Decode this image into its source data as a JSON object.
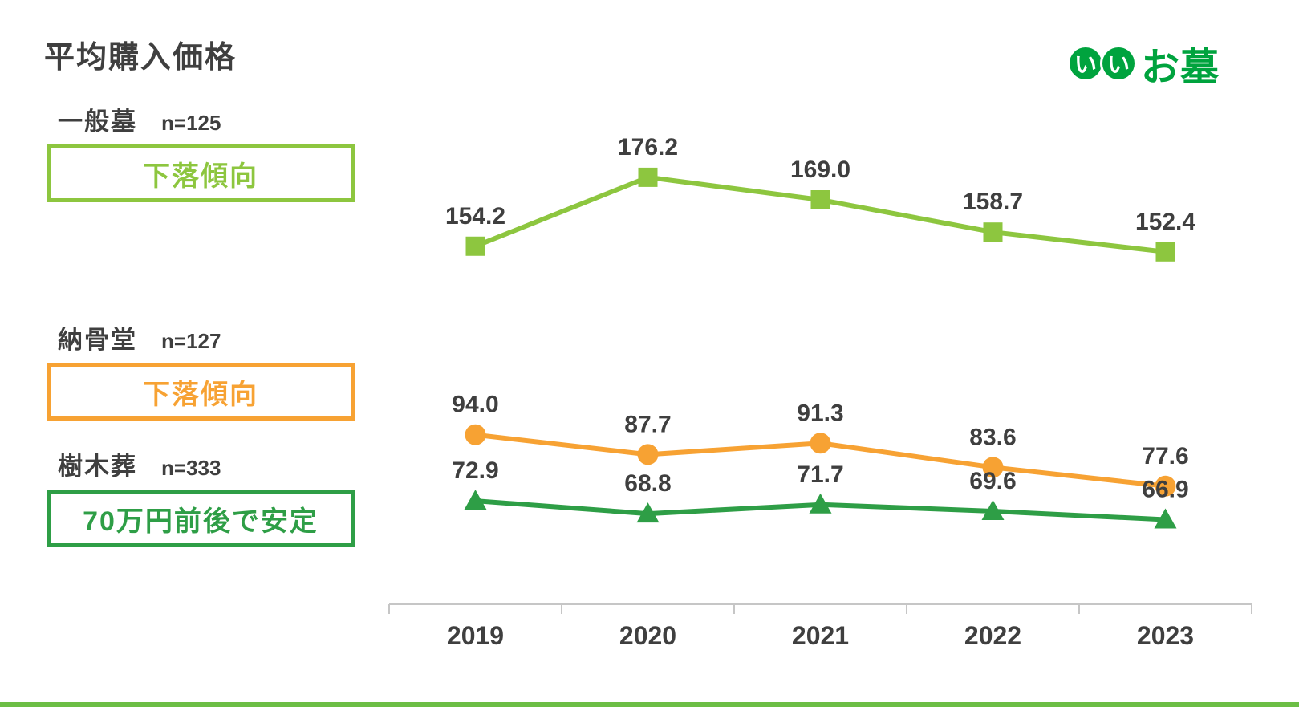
{
  "page": {
    "title": "平均購入価格",
    "logo": {
      "mark": [
        "い",
        "い"
      ],
      "text": "お墓",
      "color": "#00a33e"
    },
    "bottom_bar_color": "#6cbe45"
  },
  "legends": [
    {
      "name": "一般墓",
      "n": "n=125",
      "note": "下落傾向",
      "color": "#8dc63f"
    },
    {
      "name": "納骨堂",
      "n": "n=127",
      "note": "下落傾向",
      "color": "#f7a233"
    },
    {
      "name": "樹木葬",
      "n": "n=333",
      "note": "70万円前後で安定",
      "color": "#2e9e46"
    }
  ],
  "chart_data": {
    "type": "line",
    "categories": [
      "2019",
      "2020",
      "2021",
      "2022",
      "2023"
    ],
    "series": [
      {
        "name": "一般墓",
        "values": [
          154.2,
          176.2,
          169.0,
          158.7,
          152.4
        ],
        "color": "#8dc63f",
        "marker": "square"
      },
      {
        "name": "納骨堂",
        "values": [
          94.0,
          87.7,
          91.3,
          83.6,
          77.6
        ],
        "color": "#f7a233",
        "marker": "circle"
      },
      {
        "name": "樹木葬",
        "values": [
          72.9,
          68.8,
          71.7,
          69.6,
          66.9
        ],
        "color": "#2e9e46",
        "marker": "triangle"
      }
    ],
    "title": "平均購入価格",
    "xlabel": "",
    "ylabel": "",
    "ylim": [
      45,
      200
    ],
    "grid": false,
    "legend_position": "left",
    "axis_color": "#c6c6c6",
    "label_color": "#3f3f3f"
  }
}
